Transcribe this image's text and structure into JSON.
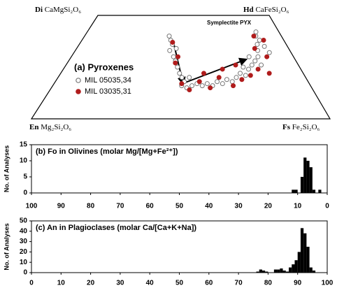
{
  "chart_data": [
    {
      "type": "quadrilateral",
      "corners": [
        {
          "abbr": "Di",
          "formula": "CaMgSi₂O₆"
        },
        {
          "abbr": "Hd",
          "formula": "CaFeSi₂O₆"
        },
        {
          "abbr": "En",
          "formula": "Mg₂Si₂O₆"
        },
        {
          "abbr": "Fs",
          "formula": "Fe₂Si₂O₆"
        }
      ],
      "title": "(a) Pyroxenes",
      "annotation": "Symplectite PYX",
      "xlim": [
        0,
        100
      ],
      "ylim": [
        0,
        50
      ],
      "series": [
        {
          "name": "MIL 05035,34",
          "color": "#777777",
          "filled": false,
          "x": [
            43,
            44,
            45,
            44,
            46,
            47,
            48,
            49,
            50,
            51,
            50,
            52,
            54,
            56,
            58,
            60,
            62,
            64,
            66,
            68,
            70,
            72,
            74,
            76,
            78,
            80,
            82,
            84,
            85,
            86,
            88,
            87,
            89,
            90,
            84,
            80,
            76,
            53,
            47,
            88
          ],
          "values": [
            40,
            38,
            36,
            33,
            30,
            28,
            25,
            22,
            20,
            18,
            16,
            15,
            16,
            17,
            16,
            17,
            16,
            18,
            17,
            19,
            18,
            20,
            22,
            21,
            24,
            26,
            28,
            30,
            33,
            36,
            38,
            40,
            35,
            32,
            26,
            30,
            25,
            20,
            34,
            42
          ]
        },
        {
          "name": "MIL 03035,31",
          "color": "#b01c1c",
          "filled": true,
          "x": [
            45,
            47,
            50,
            53,
            57,
            61,
            65,
            70,
            74,
            78,
            82,
            86,
            88,
            86,
            90,
            84,
            59,
            67,
            73,
            48
          ],
          "values": [
            37,
            27,
            17,
            14,
            18,
            15,
            20,
            16,
            19,
            21,
            24,
            22,
            30,
            40,
            38,
            34,
            22,
            24,
            26,
            30
          ]
        }
      ]
    },
    {
      "type": "histogram",
      "title": "(b) Fo in Olivines (molar Mg/[Mg+Fe²⁺])",
      "ylabel": "No. of Analyses",
      "color": "#000000",
      "bins": [
        2,
        3,
        4,
        5,
        6,
        7,
        8,
        9,
        10,
        11,
        12
      ],
      "values": [
        1,
        0,
        1,
        8,
        10,
        11,
        5,
        0,
        1,
        1
      ],
      "xlim": [
        100,
        0
      ],
      "xticks": [
        100,
        90,
        80,
        70,
        60,
        50,
        40,
        30,
        20,
        10,
        0
      ],
      "ylim": [
        0,
        15
      ],
      "yticks": [
        0,
        5,
        10,
        15
      ]
    },
    {
      "type": "histogram",
      "title": "(c) An in Plagioclases (molar Ca/[Ca+K+Na])",
      "ylabel": "No. of Analyses",
      "color": "#000000",
      "bins": [
        76,
        77,
        78,
        79,
        80,
        81,
        82,
        83,
        84,
        85,
        86,
        87,
        88,
        89,
        90,
        91,
        92,
        93,
        94,
        95,
        96
      ],
      "values": [
        1,
        3,
        2,
        1,
        0,
        0,
        3,
        3,
        4,
        2,
        1,
        5,
        8,
        12,
        20,
        43,
        38,
        25,
        5,
        2
      ],
      "xlim": [
        0,
        100
      ],
      "xticks": [
        0,
        10,
        20,
        30,
        40,
        50,
        60,
        70,
        80,
        90,
        100
      ],
      "ylim": [
        0,
        50
      ],
      "yticks": [
        0,
        10,
        20,
        30,
        40,
        50
      ]
    }
  ]
}
